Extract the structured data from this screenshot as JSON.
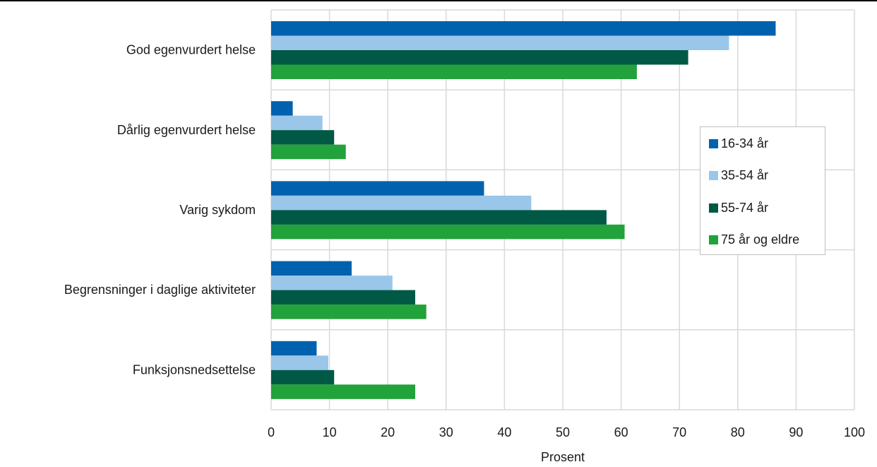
{
  "chart_data": {
    "type": "bar",
    "orientation": "horizontal",
    "categories": [
      "God egenvurdert helse",
      "Dårlig egenvurdert helse",
      "Varig sykdom",
      "Begrensninger i daglige aktiviteter",
      "Funksjonsnedsettelse"
    ],
    "series": [
      {
        "name": "16-34 år",
        "color": "#0062ae",
        "values": [
          86.5,
          3.7,
          36.5,
          13.8,
          7.8
        ]
      },
      {
        "name": "35-54 år",
        "color": "#9ac6ea",
        "values": [
          78.5,
          8.8,
          44.6,
          20.8,
          9.8
        ]
      },
      {
        "name": "55-74 år",
        "color": "#005944",
        "values": [
          71.5,
          10.8,
          57.5,
          24.7,
          10.8
        ]
      },
      {
        "name": "75 år og eldre",
        "color": "#21a23a",
        "values": [
          62.7,
          12.8,
          60.6,
          26.6,
          24.7
        ]
      }
    ],
    "xlabel": "Prosent",
    "xlim": [
      0,
      100
    ],
    "xticks": [
      "0",
      "10",
      "20",
      "30",
      "40",
      "50",
      "60",
      "70",
      "80",
      "90",
      "100"
    ],
    "grid": true,
    "legend_position": "right"
  }
}
